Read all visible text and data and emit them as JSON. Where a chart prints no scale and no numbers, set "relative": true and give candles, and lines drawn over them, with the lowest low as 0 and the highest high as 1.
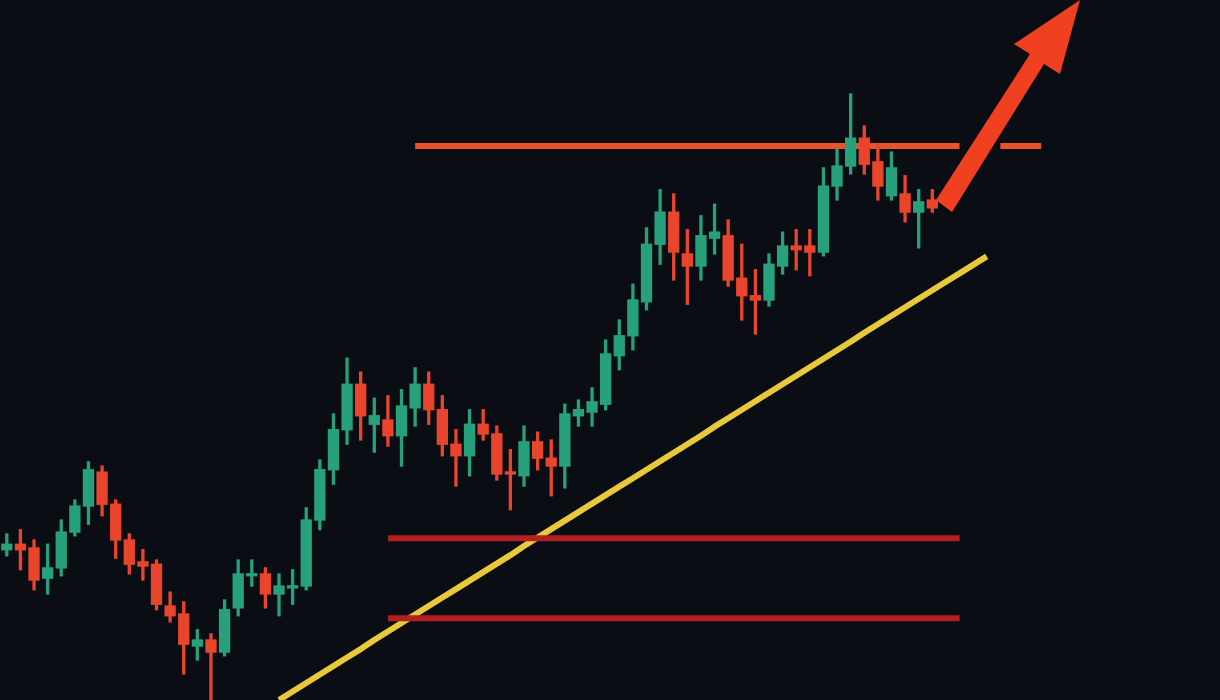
{
  "chart_data": {
    "type": "candlestick",
    "relative": true,
    "tick_labels": false,
    "categories": [
      null,
      null,
      null,
      null,
      null,
      null,
      null,
      null,
      null,
      null,
      null,
      null,
      null,
      null,
      null,
      null,
      null,
      null,
      null,
      null,
      null,
      null,
      null,
      null,
      null,
      null,
      null,
      null,
      null,
      null,
      null,
      null,
      null,
      null,
      null,
      null,
      null,
      null,
      null,
      null,
      null,
      null,
      null,
      null,
      null,
      null,
      null,
      null,
      null,
      null,
      null,
      null,
      null,
      null,
      null,
      null,
      null,
      null,
      null,
      null,
      null,
      null,
      null,
      null,
      null,
      null,
      null,
      null,
      null,
      null,
      null,
      null,
      null,
      null,
      null,
      null,
      null
    ],
    "ohlc": [
      [
        0.248,
        0.274,
        0.238,
        0.257
      ],
      [
        0.257,
        0.281,
        0.215,
        0.248
      ],
      [
        0.251,
        0.264,
        0.182,
        0.198
      ],
      [
        0.201,
        0.257,
        0.175,
        0.218
      ],
      [
        0.218,
        0.297,
        0.205,
        0.277
      ],
      [
        0.277,
        0.33,
        0.271,
        0.32
      ],
      [
        0.32,
        0.393,
        0.29,
        0.38
      ],
      [
        0.376,
        0.386,
        0.304,
        0.323
      ],
      [
        0.323,
        0.33,
        0.234,
        0.264
      ],
      [
        0.264,
        0.274,
        0.208,
        0.224
      ],
      [
        0.228,
        0.248,
        0.198,
        0.221
      ],
      [
        0.224,
        0.231,
        0.149,
        0.158
      ],
      [
        0.155,
        0.178,
        0.129,
        0.139
      ],
      [
        0.142,
        0.162,
        0.043,
        0.092
      ],
      [
        0.089,
        0.116,
        0.066,
        0.099
      ],
      [
        0.099,
        0.109,
        0,
        0.079
      ],
      [
        0.079,
        0.165,
        0.073,
        0.149
      ],
      [
        0.152,
        0.231,
        0.139,
        0.208
      ],
      [
        0.205,
        0.231,
        0.188,
        0.208
      ],
      [
        0.208,
        0.218,
        0.152,
        0.175
      ],
      [
        0.175,
        0.208,
        0.139,
        0.188
      ],
      [
        0.185,
        0.215,
        0.158,
        0.188
      ],
      [
        0.188,
        0.317,
        0.182,
        0.297
      ],
      [
        0.297,
        0.396,
        0.281,
        0.38
      ],
      [
        0.38,
        0.472,
        0.356,
        0.446
      ],
      [
        0.446,
        0.564,
        0.422,
        0.521
      ],
      [
        0.521,
        0.541,
        0.429,
        0.469
      ],
      [
        0.455,
        0.498,
        0.409,
        0.469
      ],
      [
        0.462,
        0.502,
        0.419,
        0.436
      ],
      [
        0.436,
        0.512,
        0.386,
        0.485
      ],
      [
        0.482,
        0.548,
        0.452,
        0.521
      ],
      [
        0.521,
        0.541,
        0.455,
        0.479
      ],
      [
        0.479,
        0.502,
        0.403,
        0.422
      ],
      [
        0.422,
        0.446,
        0.353,
        0.403
      ],
      [
        0.403,
        0.479,
        0.37,
        0.455
      ],
      [
        0.455,
        0.479,
        0.429,
        0.439
      ],
      [
        0.439,
        0.452,
        0.363,
        0.373
      ],
      [
        0.376,
        0.413,
        0.314,
        0.373
      ],
      [
        0.37,
        0.452,
        0.353,
        0.426
      ],
      [
        0.426,
        0.442,
        0.38,
        0.399
      ],
      [
        0.399,
        0.429,
        0.337,
        0.386
      ],
      [
        0.386,
        0.488,
        0.35,
        0.472
      ],
      [
        0.469,
        0.495,
        0.452,
        0.479
      ],
      [
        0.475,
        0.515,
        0.452,
        0.492
      ],
      [
        0.488,
        0.594,
        0.479,
        0.571
      ],
      [
        0.568,
        0.627,
        0.545,
        0.601
      ],
      [
        0.601,
        0.686,
        0.578,
        0.66
      ],
      [
        0.657,
        0.779,
        0.644,
        0.752
      ],
      [
        0.752,
        0.842,
        0.719,
        0.805
      ],
      [
        0.805,
        0.835,
        0.693,
        0.739
      ],
      [
        0.736,
        0.776,
        0.653,
        0.716
      ],
      [
        0.716,
        0.799,
        0.693,
        0.766
      ],
      [
        0.762,
        0.818,
        0.736,
        0.772
      ],
      [
        0.766,
        0.792,
        0.683,
        0.693
      ],
      [
        0.696,
        0.752,
        0.627,
        0.667
      ],
      [
        0.667,
        0.71,
        0.604,
        0.66
      ],
      [
        0.66,
        0.736,
        0.65,
        0.719
      ],
      [
        0.716,
        0.772,
        0.703,
        0.749
      ],
      [
        0.749,
        0.776,
        0.71,
        0.743
      ],
      [
        0.749,
        0.776,
        0.7,
        0.739
      ],
      [
        0.739,
        0.878,
        0.733,
        0.848
      ],
      [
        0.848,
        0.908,
        0.825,
        0.881
      ],
      [
        0.881,
        1,
        0.868,
        0.927
      ],
      [
        0.927,
        0.947,
        0.868,
        0.884
      ],
      [
        0.888,
        0.917,
        0.825,
        0.848
      ],
      [
        0.832,
        0.904,
        0.825,
        0.878
      ],
      [
        0.835,
        0.865,
        0.789,
        0.805
      ],
      [
        0.805,
        0.842,
        0.746,
        0.822
      ],
      [
        0.825,
        0.842,
        0.805,
        0.812
      ],
      null,
      null,
      null,
      null,
      null,
      null,
      null,
      null
    ],
    "colors": [
      "#26a17b",
      "#e8452c",
      "#e8452c",
      "#26a17b",
      "#26a17b",
      "#26a17b",
      "#26a17b",
      "#e8452c",
      "#e8452c",
      "#e8452c",
      "#e8452c",
      "#e8452c",
      "#e8452c",
      "#e8452c",
      "#26a17b",
      "#e8452c",
      "#26a17b",
      "#26a17b",
      "#26a17b",
      "#e8452c",
      "#26a17b",
      "#26a17b",
      "#26a17b",
      "#26a17b",
      "#26a17b",
      "#26a17b",
      "#e8452c",
      "#26a17b",
      "#e8452c",
      "#26a17b",
      "#26a17b",
      "#e8452c",
      "#e8452c",
      "#e8452c",
      "#26a17b",
      "#e8452c",
      "#e8452c",
      "#e8452c",
      "#26a17b",
      "#e8452c",
      "#e8452c",
      "#26a17b",
      "#26a17b",
      "#26a17b",
      "#26a17b",
      "#26a17b",
      "#26a17b",
      "#26a17b",
      "#26a17b",
      "#e8452c",
      "#e8452c",
      "#26a17b",
      "#26a17b",
      "#e8452c",
      "#e8452c",
      "#e8452c",
      "#26a17b",
      "#26a17b",
      "#e8452c",
      "#e8452c",
      "#26a17b",
      "#26a17b",
      "#26a17b",
      "#e8452c",
      "#e8452c",
      "#26a17b",
      "#e8452c",
      "#26a17b",
      "#e8452c",
      null,
      null,
      null,
      null,
      null,
      null,
      null,
      null
    ],
    "series": [
      {
        "type": "line",
        "color": "#e8532a",
        "values": [
          null,
          null,
          null,
          null,
          null,
          null,
          null,
          null,
          null,
          null,
          null,
          null,
          null,
          null,
          null,
          null,
          null,
          null,
          null,
          null,
          null,
          null,
          null,
          null,
          null,
          null,
          null,
          null,
          null,
          null,
          0.914,
          0.914,
          0.914,
          0.914,
          0.914,
          0.914,
          0.914,
          0.914,
          0.914,
          0.914,
          0.914,
          0.914,
          0.914,
          0.914,
          0.914,
          0.914,
          0.914,
          0.914,
          0.914,
          0.914,
          0.914,
          0.914,
          0.914,
          0.914,
          0.914,
          0.914,
          0.914,
          0.914,
          0.914,
          0.914,
          0.914,
          0.914,
          0.914,
          0.914,
          0.914,
          0.914,
          0.914,
          0.914,
          0.914,
          0.914,
          0.914,
          null,
          null,
          0.914,
          0.914,
          0.914,
          0.914
        ]
      },
      {
        "type": "line",
        "color": "#b51f1f",
        "values": [
          null,
          null,
          null,
          null,
          null,
          null,
          null,
          null,
          null,
          null,
          null,
          null,
          null,
          null,
          null,
          null,
          null,
          null,
          null,
          null,
          null,
          null,
          null,
          null,
          null,
          null,
          null,
          null,
          0.267,
          0.267,
          0.267,
          0.267,
          0.267,
          0.267,
          0.267,
          0.267,
          0.267,
          0.267,
          0.267,
          0.267,
          0.267,
          0.267,
          0.267,
          0.267,
          0.267,
          0.267,
          0.267,
          0.267,
          0.267,
          0.267,
          0.267,
          0.267,
          0.267,
          0.267,
          0.267,
          0.267,
          0.267,
          0.267,
          0.267,
          0.267,
          0.267,
          0.267,
          0.267,
          0.267,
          0.267,
          0.267,
          0.267,
          0.267,
          0.267,
          0.267,
          0.267,
          null,
          null,
          null,
          null,
          null,
          null
        ]
      },
      {
        "type": "line",
        "color": "#b51f1f",
        "values": [
          null,
          null,
          null,
          null,
          null,
          null,
          null,
          null,
          null,
          null,
          null,
          null,
          null,
          null,
          null,
          null,
          null,
          null,
          null,
          null,
          null,
          null,
          null,
          null,
          null,
          null,
          null,
          null,
          0.135,
          0.135,
          0.135,
          0.135,
          0.135,
          0.135,
          0.135,
          0.135,
          0.135,
          0.135,
          0.135,
          0.135,
          0.135,
          0.135,
          0.135,
          0.135,
          0.135,
          0.135,
          0.135,
          0.135,
          0.135,
          0.135,
          0.135,
          0.135,
          0.135,
          0.135,
          0.135,
          0.135,
          0.135,
          0.135,
          0.135,
          0.135,
          0.135,
          0.135,
          0.135,
          0.135,
          0.135,
          0.135,
          0.135,
          0.135,
          0.135,
          0.135,
          0.135,
          null,
          null,
          null,
          null,
          null,
          null
        ]
      },
      {
        "type": "line",
        "color": "#e8c93a",
        "values": [
          null,
          null,
          null,
          null,
          null,
          null,
          null,
          null,
          null,
          null,
          null,
          null,
          null,
          null,
          null,
          null,
          null,
          null,
          null,
          null,
          0,
          0.014,
          0.028,
          0.042,
          0.056,
          0.07,
          0.084,
          0.099,
          0.113,
          0.127,
          0.141,
          0.155,
          0.169,
          0.183,
          0.197,
          0.211,
          0.225,
          0.239,
          0.254,
          0.268,
          0.282,
          0.296,
          0.31,
          0.324,
          0.338,
          0.352,
          0.366,
          0.38,
          0.394,
          0.408,
          0.422,
          0.436,
          0.451,
          0.465,
          0.479,
          0.493,
          0.507,
          0.521,
          0.535,
          0.549,
          0.563,
          0.577,
          0.591,
          0.606,
          0.62,
          0.634,
          0.648,
          0.662,
          0.676,
          0.69,
          0.704,
          0.718,
          0.732,
          null,
          null,
          null,
          null
        ]
      }
    ]
  }
}
